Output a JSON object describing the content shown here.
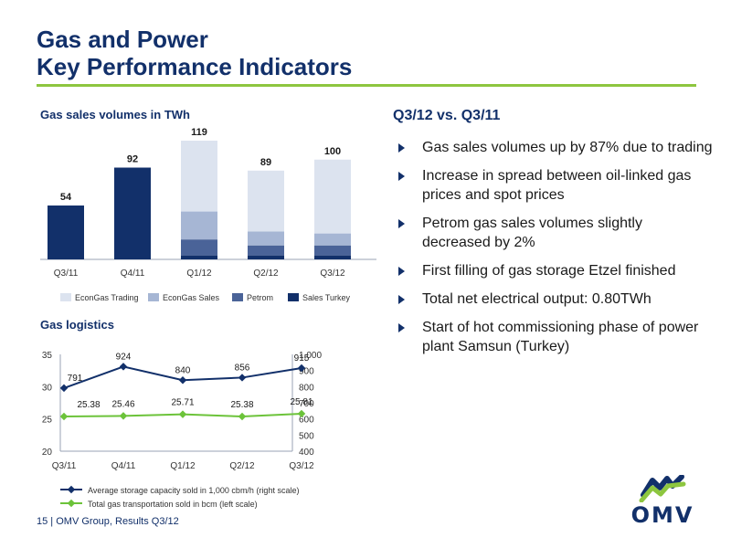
{
  "header": {
    "title_line1": "Gas and Power",
    "title_line2": "Key Performance Indicators"
  },
  "right_panel": {
    "title": "Q3/12 vs. Q3/11",
    "bullets": [
      "Gas sales volumes up by 87% due to trading",
      "Increase in spread between oil-linked gas prices and spot prices",
      "Petrom gas sales volumes slightly decreased by 2%",
      "First filling of gas storage Etzel finished",
      "Total net electrical output: 0.80TWh",
      "Start of hot commissioning phase of power plant Samsun (Turkey)"
    ]
  },
  "footer": {
    "page": "15",
    "text": "OMV Group, Results Q3/12"
  },
  "logo": {
    "text": "OMV"
  },
  "colors": {
    "navy": "#12306a",
    "green": "#8dc63f",
    "econgas_trading": "#dce3ef",
    "econgas_sales": "#a6b6d4",
    "petrom": "#4a6398",
    "sales_turkey": "#12306a",
    "storage_line": "#12306a",
    "transport_line": "#6cc33a"
  },
  "chart_data": [
    {
      "type": "bar",
      "stacked": true,
      "title": "Gas sales volumes in TWh",
      "categories": [
        "Q3/11",
        "Q4/11",
        "Q1/12",
        "Q2/12",
        "Q3/12"
      ],
      "totals": [
        54,
        92,
        119,
        89,
        100
      ],
      "series": [
        {
          "name": "Sales Turkey",
          "values": [
            54,
            92,
            4,
            4,
            4
          ]
        },
        {
          "name": "Petrom",
          "values": [
            0,
            0,
            16,
            10,
            10
          ]
        },
        {
          "name": "EconGas Sales",
          "values": [
            0,
            0,
            28,
            14,
            12
          ]
        },
        {
          "name": "EconGas Trading",
          "values": [
            0,
            0,
            71,
            61,
            74
          ]
        }
      ],
      "legend": [
        "EconGas Trading",
        "EconGas Sales",
        "Petrom",
        "Sales Turkey"
      ],
      "legend_position": "bottom",
      "ylim": [
        0,
        130
      ]
    },
    {
      "type": "line",
      "title": "Gas logistics",
      "categories": [
        "Q3/11",
        "Q4/11",
        "Q1/12",
        "Q2/12",
        "Q3/12"
      ],
      "left_axis": {
        "ticks": [
          "20",
          "25",
          "30",
          "35"
        ],
        "range": [
          20,
          35
        ]
      },
      "right_axis": {
        "ticks": [
          "400",
          "500",
          "600",
          "700",
          "800",
          "900",
          "1,000"
        ],
        "range": [
          400,
          1000
        ]
      },
      "series": [
        {
          "name": "Average storage capacity sold in 1,000 cbm/h (right scale)",
          "axis": "right",
          "values": [
            791,
            924,
            840,
            856,
            915
          ],
          "labels": [
            "791",
            "924",
            "840",
            "856",
            "915"
          ]
        },
        {
          "name": "Total gas transportation sold in bcm (left scale)",
          "axis": "left",
          "values": [
            25.38,
            25.46,
            25.71,
            25.38,
            25.81
          ],
          "labels": [
            "25.38",
            "25.46",
            "25.71",
            "25.38",
            "25.81"
          ]
        }
      ],
      "legend_position": "bottom"
    }
  ]
}
